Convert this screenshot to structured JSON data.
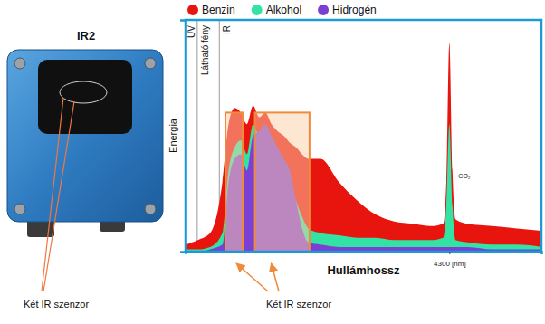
{
  "device": {
    "title": "IR2",
    "label": "Két IR szenzor"
  },
  "chart_data": {
    "type": "area",
    "x_label": "Hullámhossz",
    "y_label": "Energia",
    "x": [
      0,
      200,
      400,
      600,
      700,
      800,
      900,
      1000,
      1100,
      1200,
      1300,
      1400,
      1500,
      1600,
      1700,
      1800,
      1900,
      2000,
      2200,
      2500,
      2800,
      3100,
      3400,
      3700,
      4000,
      4200,
      4250,
      4300,
      4350,
      4400,
      4600,
      5000,
      5400,
      5800
    ],
    "series": [
      {
        "name": "Benzin",
        "color": "#e8140e",
        "values": [
          3,
          5,
          8,
          30,
          55,
          62,
          60,
          55,
          63,
          58,
          60,
          55,
          52,
          50,
          47,
          45,
          42,
          40,
          40,
          30,
          22,
          16,
          13,
          12,
          11,
          12,
          30,
          90,
          35,
          14,
          12,
          11,
          10,
          9
        ]
      },
      {
        "name": "Alkohol",
        "color": "#33e3a4",
        "values": [
          1,
          1,
          2,
          8,
          35,
          45,
          48,
          42,
          55,
          50,
          52,
          48,
          42,
          38,
          30,
          22,
          15,
          10,
          8,
          7,
          6,
          6,
          5,
          5,
          5,
          6,
          20,
          55,
          20,
          5,
          4,
          3,
          3,
          2
        ]
      },
      {
        "name": "Hidrogén",
        "color": "#7b3fd4",
        "values": [
          0,
          0,
          1,
          3,
          30,
          40,
          42,
          35,
          50,
          52,
          55,
          50,
          45,
          40,
          35,
          22,
          10,
          4,
          3,
          2,
          2,
          2,
          2,
          2,
          2,
          2,
          2,
          2,
          2,
          2,
          2,
          1,
          1,
          1
        ]
      }
    ],
    "xlim": [
      0,
      5800
    ],
    "ylim": [
      0,
      100
    ],
    "xticks": [
      {
        "value": 4300,
        "label": "4300 [nm]"
      }
    ],
    "yticks": [],
    "tick_labels": "x",
    "grid": false,
    "stacked": false,
    "legend": "top-left",
    "regions": [
      {
        "label": "UV",
        "start": 0,
        "end": 190
      },
      {
        "label": "Látható fény",
        "start": 190,
        "end": 550
      },
      {
        "label": "IR",
        "start": 550,
        "end": 5800
      }
    ],
    "sensor_bands": [
      {
        "start": 650,
        "end": 930,
        "top": 60
      },
      {
        "start": 1130,
        "end": 2020,
        "top": 60
      }
    ],
    "sensor_label": "Két IR szenzor",
    "annotations": [
      {
        "text": "CO₂",
        "x": 4300
      }
    ]
  }
}
